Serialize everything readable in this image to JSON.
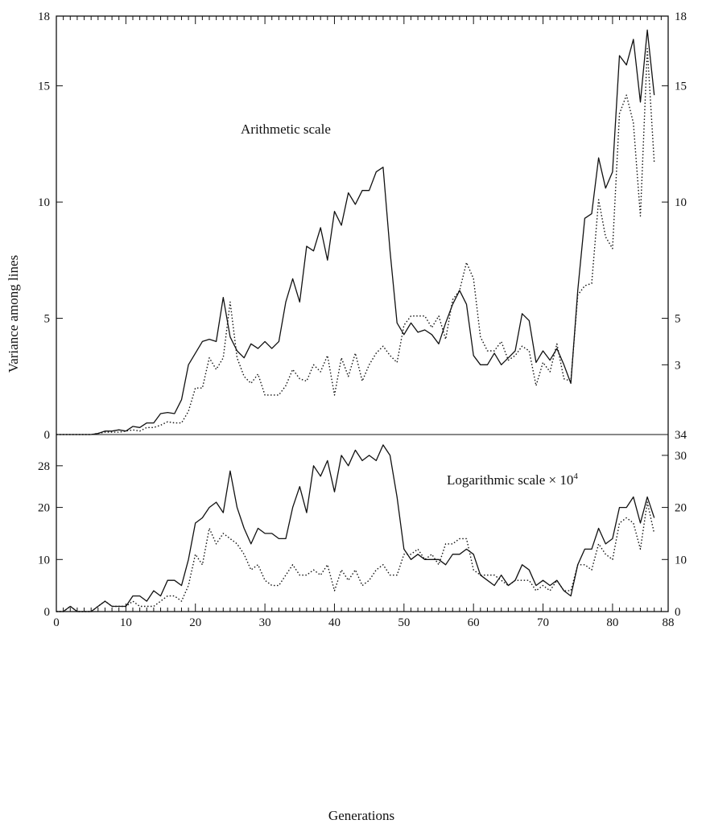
{
  "chart_data": [
    {
      "type": "line",
      "title": "Arithmetic scale",
      "ylabel": "Variance among lines",
      "xlabel": "Generations",
      "xlim": [
        0,
        88
      ],
      "ylim": [
        0,
        18
      ],
      "left_ticks": [
        0,
        5,
        10,
        15,
        18
      ],
      "right_ticks": [
        3,
        5,
        10,
        15,
        18
      ],
      "series": [
        {
          "style": "solid",
          "x": [
            0,
            1,
            2,
            3,
            4,
            5,
            6,
            7,
            8,
            9,
            10,
            11,
            12,
            13,
            14,
            15,
            16,
            17,
            18,
            19,
            20,
            21,
            22,
            23,
            24,
            25,
            26,
            27,
            28,
            29,
            30,
            31,
            32,
            33,
            34,
            35,
            36,
            37,
            38,
            39,
            40,
            41,
            42,
            43,
            44,
            45,
            46,
            47,
            48,
            49,
            50,
            51,
            52,
            53,
            54,
            55,
            56,
            57,
            58,
            59,
            60,
            61,
            62,
            63,
            64,
            65,
            66,
            67,
            68,
            69,
            70,
            71,
            72,
            73,
            74,
            75,
            76,
            77,
            78,
            79,
            80,
            81,
            82,
            83,
            84,
            85,
            86
          ],
          "values": [
            0,
            0,
            0,
            0,
            0,
            0,
            0.05,
            0.15,
            0.15,
            0.2,
            0.15,
            0.35,
            0.3,
            0.5,
            0.5,
            0.9,
            0.95,
            0.9,
            1.5,
            3.0,
            3.5,
            4.0,
            4.1,
            4.0,
            5.9,
            4.2,
            3.6,
            3.3,
            3.9,
            3.7,
            4.0,
            3.7,
            4.0,
            5.7,
            6.7,
            5.7,
            8.1,
            7.9,
            8.9,
            7.5,
            9.6,
            9.0,
            10.4,
            9.9,
            10.5,
            10.5,
            11.3,
            11.5,
            7.9,
            4.8,
            4.3,
            4.8,
            4.4,
            4.5,
            4.3,
            3.9,
            4.8,
            5.6,
            6.2,
            5.6,
            3.4,
            3.0,
            3.0,
            3.5,
            3.0,
            3.3,
            3.6,
            5.2,
            4.9,
            3.1,
            3.6,
            3.2,
            3.7,
            3.0,
            2.2,
            6.2,
            9.3,
            9.5,
            11.9,
            10.6,
            11.3,
            16.3,
            15.9,
            17.0,
            14.3,
            17.4,
            14.6
          ]
        },
        {
          "style": "dotted",
          "x": [
            0,
            1,
            2,
            3,
            4,
            5,
            6,
            7,
            8,
            9,
            10,
            11,
            12,
            13,
            14,
            15,
            16,
            17,
            18,
            19,
            20,
            21,
            22,
            23,
            24,
            25,
            26,
            27,
            28,
            29,
            30,
            31,
            32,
            33,
            34,
            35,
            36,
            37,
            38,
            39,
            40,
            41,
            42,
            43,
            44,
            45,
            46,
            47,
            48,
            49,
            50,
            51,
            52,
            53,
            54,
            55,
            56,
            57,
            58,
            59,
            60,
            61,
            62,
            63,
            64,
            65,
            66,
            67,
            68,
            69,
            70,
            71,
            72,
            73,
            74,
            75,
            76,
            77,
            78,
            79,
            80,
            81,
            82,
            83,
            84,
            85,
            86
          ],
          "values": [
            0,
            0,
            0,
            0,
            0,
            0,
            0.05,
            0.1,
            0.1,
            0.1,
            0.15,
            0.2,
            0.15,
            0.3,
            0.3,
            0.4,
            0.55,
            0.5,
            0.5,
            1.0,
            2.0,
            2.0,
            3.3,
            2.8,
            3.3,
            5.7,
            3.3,
            2.5,
            2.2,
            2.6,
            1.7,
            1.7,
            1.7,
            2.1,
            2.8,
            2.4,
            2.3,
            3.0,
            2.7,
            3.4,
            1.7,
            3.3,
            2.5,
            3.5,
            2.3,
            3.0,
            3.5,
            3.8,
            3.4,
            3.1,
            4.7,
            5.1,
            5.1,
            5.1,
            4.6,
            5.1,
            4.1,
            5.8,
            6.2,
            7.4,
            6.7,
            4.2,
            3.6,
            3.6,
            4.0,
            3.2,
            3.4,
            3.8,
            3.6,
            2.1,
            3.1,
            2.7,
            3.9,
            2.4,
            2.3,
            6.0,
            6.4,
            6.5,
            10.1,
            8.5,
            8.0,
            13.8,
            14.6,
            13.4,
            9.4,
            16.6,
            11.7
          ]
        }
      ]
    },
    {
      "type": "line",
      "title": "Logarithmic scale × 10",
      "title_superscript": "4",
      "ylabel": "Variance among lines",
      "xlabel": "Generations",
      "xlim": [
        0,
        88
      ],
      "ylim": [
        0,
        34
      ],
      "left_ticks": [
        0,
        10,
        20,
        28
      ],
      "right_ticks": [
        0,
        10,
        20,
        30,
        34
      ],
      "x_tick_labels": [
        "0",
        "10",
        "20",
        "30",
        "40",
        "50",
        "60",
        "70",
        "80",
        "88"
      ],
      "series": [
        {
          "style": "solid",
          "x": [
            0,
            1,
            2,
            3,
            4,
            5,
            6,
            7,
            8,
            9,
            10,
            11,
            12,
            13,
            14,
            15,
            16,
            17,
            18,
            19,
            20,
            21,
            22,
            23,
            24,
            25,
            26,
            27,
            28,
            29,
            30,
            31,
            32,
            33,
            34,
            35,
            36,
            37,
            38,
            39,
            40,
            41,
            42,
            43,
            44,
            45,
            46,
            47,
            48,
            49,
            50,
            51,
            52,
            53,
            54,
            55,
            56,
            57,
            58,
            59,
            60,
            61,
            62,
            63,
            64,
            65,
            66,
            67,
            68,
            69,
            70,
            71,
            72,
            73,
            74,
            75,
            76,
            77,
            78,
            79,
            80,
            81,
            82,
            83,
            84,
            85,
            86
          ],
          "values": [
            0,
            0,
            1,
            0,
            0,
            0,
            1,
            2,
            1,
            1,
            1,
            3,
            3,
            2,
            4,
            3,
            6,
            6,
            5,
            10,
            17,
            18,
            20,
            21,
            19,
            27,
            20,
            16,
            13,
            16,
            15,
            15,
            14,
            14,
            20,
            24,
            19,
            28,
            26,
            29,
            23,
            30,
            28,
            31,
            29,
            30,
            29,
            32,
            30,
            22,
            12,
            10,
            11,
            10,
            10,
            10,
            9,
            11,
            11,
            12,
            11,
            7,
            6,
            5,
            7,
            5,
            6,
            9,
            8,
            5,
            6,
            5,
            6,
            4,
            3,
            9,
            12,
            12,
            16,
            13,
            14,
            20,
            20,
            22,
            17,
            22,
            18
          ]
        },
        {
          "style": "dotted",
          "x": [
            0,
            1,
            2,
            3,
            4,
            5,
            6,
            7,
            8,
            9,
            10,
            11,
            12,
            13,
            14,
            15,
            16,
            17,
            18,
            19,
            20,
            21,
            22,
            23,
            24,
            25,
            26,
            27,
            28,
            29,
            30,
            31,
            32,
            33,
            34,
            35,
            36,
            37,
            38,
            39,
            40,
            41,
            42,
            43,
            44,
            45,
            46,
            47,
            48,
            49,
            50,
            51,
            52,
            53,
            54,
            55,
            56,
            57,
            58,
            59,
            60,
            61,
            62,
            63,
            64,
            65,
            66,
            67,
            68,
            69,
            70,
            71,
            72,
            73,
            74,
            75,
            76,
            77,
            78,
            79,
            80,
            81,
            82,
            83,
            84,
            85,
            86
          ],
          "values": [
            0,
            0,
            1,
            0,
            0,
            0,
            1,
            2,
            1,
            1,
            1,
            2,
            1,
            1,
            1,
            2,
            3,
            3,
            2,
            5,
            11,
            9,
            16,
            13,
            15,
            14,
            13,
            11,
            8,
            9,
            6,
            5,
            5,
            7,
            9,
            7,
            7,
            8,
            7,
            9,
            4,
            8,
            6,
            8,
            5,
            6,
            8,
            9,
            7,
            7,
            11,
            11,
            12,
            10,
            11,
            9,
            13,
            13,
            14,
            14,
            8,
            7,
            7,
            7,
            6,
            5,
            6,
            6,
            6,
            4,
            5,
            4,
            6,
            4,
            4,
            9,
            9,
            8,
            13,
            11,
            10,
            17,
            18,
            17,
            12,
            21,
            15
          ]
        }
      ]
    }
  ]
}
